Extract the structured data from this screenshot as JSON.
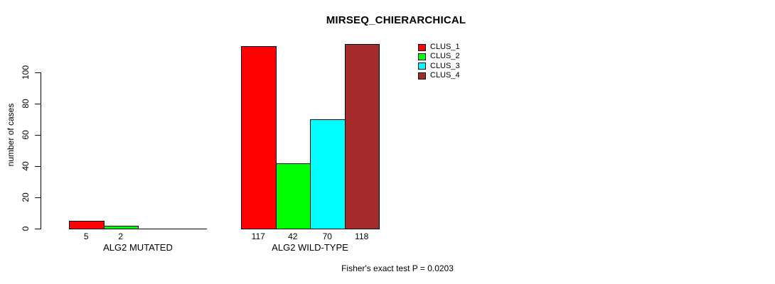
{
  "title": "MIRSEQ_CHIERARCHICAL",
  "annotation": "Fisher's exact test P = 0.0203",
  "y_axis_title": "number of cases",
  "colors": {
    "clus1": "#FF0000",
    "clus2": "#00FF00",
    "clus3": "#00FFFF",
    "clus4": "#A62B2B",
    "axis": "#000000",
    "background": "#FFFFFF"
  },
  "chart_data": {
    "type": "bar",
    "title": "MIRSEQ_CHIERARCHICAL",
    "xlabel": "",
    "ylabel": "number of cases",
    "categories": [
      "ALG2 MUTATED",
      "ALG2 WILD-TYPE"
    ],
    "series": [
      {
        "name": "CLUS_1",
        "color": "#FF0000",
        "values": [
          5,
          117
        ]
      },
      {
        "name": "CLUS_2",
        "color": "#00FF00",
        "values": [
          2,
          42
        ]
      },
      {
        "name": "CLUS_3",
        "color": "#00FFFF",
        "values": [
          0,
          70
        ]
      },
      {
        "name": "CLUS_4",
        "color": "#A62B2B",
        "values": [
          0,
          118
        ]
      }
    ],
    "bar_value_labels": [
      [
        "5",
        "2",
        "",
        ""
      ],
      [
        "117",
        "42",
        "70",
        "118"
      ]
    ],
    "yticks": [
      0,
      20,
      40,
      60,
      80,
      100
    ],
    "ylim": [
      0,
      120
    ],
    "grid": false,
    "legend_position": "top-right",
    "legend_entries": [
      "CLUS_1",
      "CLUS_2",
      "CLUS_3",
      "CLUS_4"
    ],
    "annotation": "Fisher's exact test P = 0.0203"
  }
}
